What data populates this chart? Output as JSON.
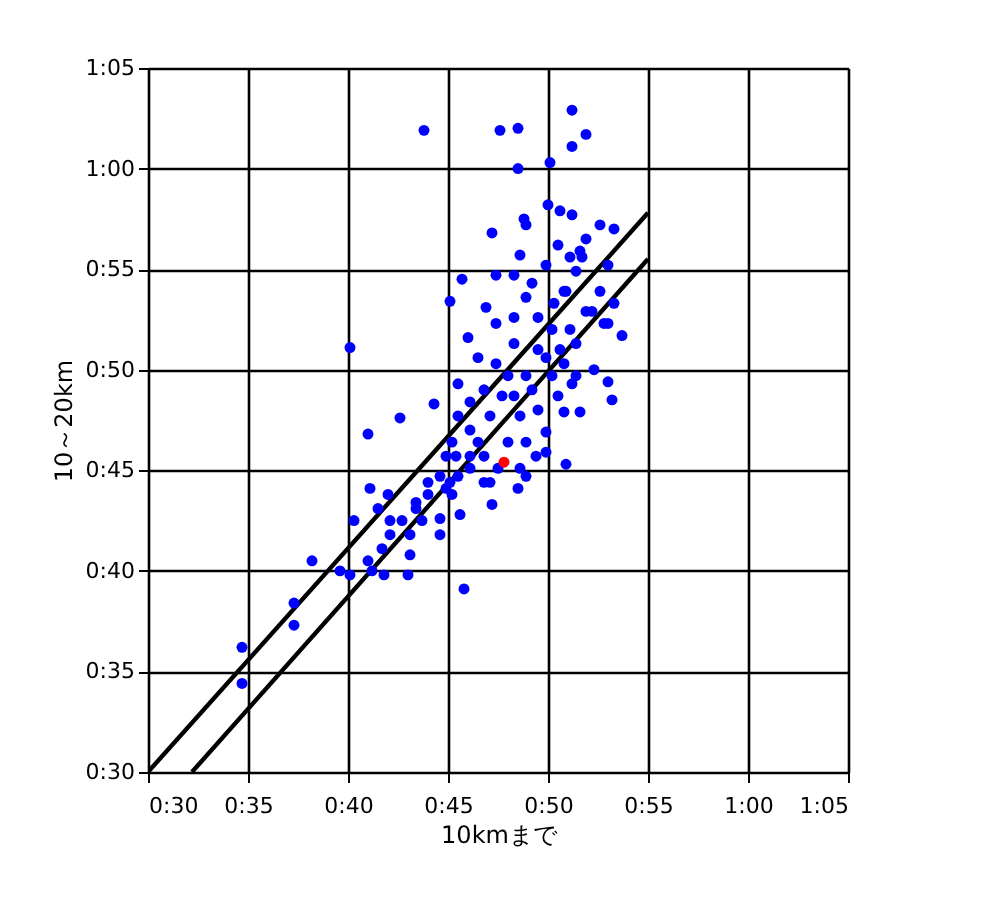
{
  "chart_data": {
    "type": "scatter",
    "xlabel": "10kmまで",
    "ylabel": "10～20km",
    "xlim": [
      30,
      65
    ],
    "ylim": [
      30,
      65
    ],
    "xticks": [
      {
        "value": 30,
        "label": "0:30"
      },
      {
        "value": 35,
        "label": "0:35"
      },
      {
        "value": 40,
        "label": "0:40"
      },
      {
        "value": 45,
        "label": "0:45"
      },
      {
        "value": 50,
        "label": "0:50"
      },
      {
        "value": 55,
        "label": "0:55"
      },
      {
        "value": 60,
        "label": "1:00"
      },
      {
        "value": 65,
        "label": "1:05"
      }
    ],
    "yticks": [
      {
        "value": 30,
        "label": "0:30"
      },
      {
        "value": 35,
        "label": "0:35"
      },
      {
        "value": 40,
        "label": "0:40"
      },
      {
        "value": 45,
        "label": "0:45"
      },
      {
        "value": 50,
        "label": "0:50"
      },
      {
        "value": 55,
        "label": "0:55"
      },
      {
        "value": 60,
        "label": "1:00"
      },
      {
        "value": 65,
        "label": "1:05"
      }
    ],
    "grid": true,
    "marker": "circle",
    "series": [
      {
        "type": "line",
        "color": "#000000",
        "marker": "none",
        "line_style": "solid",
        "x": [
          30,
          55
        ],
        "values": [
          30,
          57.8
        ]
      },
      {
        "type": "line",
        "color": "#000000",
        "marker": "none",
        "line_style": "solid",
        "x": [
          32.2,
          55
        ],
        "values": [
          30,
          55.5
        ]
      },
      {
        "color": "#0000ff",
        "x": [
          43.8,
          47.6,
          48.5,
          51.2,
          51.9,
          51.2,
          48.5,
          50.1,
          40.1,
          47.2,
          45.7,
          45.1,
          34.7,
          34.7,
          37.3,
          37.3,
          38.2,
          39.6,
          40.1,
          41.0,
          41.1,
          40.3,
          41.8,
          43.0,
          42.6,
          44.3,
          45.8,
          45.6,
          44.6,
          43.1,
          42.1,
          43.4,
          44.0,
          45.1,
          45.4,
          45.2,
          46.5,
          47.1,
          47.2,
          48.5,
          48.9,
          49.9,
          50.9,
          49.9,
          50.8,
          51.6,
          49.5,
          48.6,
          47.7,
          46.8,
          46.1,
          45.5,
          46.5,
          47.4,
          48.3,
          48.9,
          49.5,
          50.2,
          50.8,
          51.4,
          52.3,
          53.0,
          53.2,
          53.7,
          53.0,
          53.3,
          52.6,
          51.9,
          51.1,
          50.2,
          49.5,
          48.9,
          48.3,
          47.4,
          46.9,
          46.0,
          49.2,
          49.9,
          50.5,
          51.1,
          51.6,
          51.9,
          52.6,
          53.3,
          53.0,
          51.4,
          50.8,
          50.3,
          50.0,
          50.6,
          51.2,
          48.9,
          48.6,
          48.3,
          47.4,
          48.8,
          49.9,
          50.6,
          51.4,
          48.0,
          47.1,
          46.1,
          45.5,
          44.9,
          44.6,
          44.0,
          43.4,
          42.7,
          42.1,
          41.7,
          41.0,
          41.5,
          42.0,
          43.1,
          45.2,
          46.1,
          46.8,
          47.5,
          48.0,
          48.9,
          49.4,
          48.6,
          46.1,
          46.8,
          48.3,
          49.2,
          50.5,
          51.2,
          52.2,
          52.8,
          44.9,
          45.5,
          43.7,
          41.2,
          44.6,
          50.9,
          51.7
        ],
        "values": [
          61.9,
          61.9,
          62.0,
          62.9,
          61.7,
          61.1,
          60.0,
          60.3,
          51.1,
          56.8,
          54.5,
          53.4,
          36.2,
          34.4,
          38.4,
          37.3,
          40.5,
          40.0,
          39.8,
          46.8,
          44.1,
          42.5,
          39.8,
          39.8,
          47.6,
          48.3,
          39.1,
          42.8,
          41.8,
          40.8,
          42.5,
          43.4,
          44.4,
          44.4,
          45.7,
          46.4,
          46.4,
          44.4,
          43.3,
          44.1,
          44.7,
          45.9,
          45.3,
          46.9,
          47.9,
          47.9,
          48.0,
          47.7,
          48.7,
          49.0,
          48.4,
          49.3,
          50.6,
          50.3,
          51.3,
          49.7,
          51.0,
          49.7,
          50.3,
          49.7,
          50.0,
          49.4,
          48.5,
          51.7,
          52.3,
          53.3,
          53.9,
          52.9,
          52.0,
          52.0,
          52.6,
          53.6,
          52.6,
          52.3,
          53.1,
          51.6,
          54.3,
          55.2,
          56.2,
          55.6,
          55.9,
          56.5,
          57.2,
          57.0,
          55.2,
          54.9,
          53.9,
          53.3,
          58.2,
          57.9,
          57.7,
          57.2,
          55.7,
          54.7,
          54.7,
          57.5,
          50.6,
          51.0,
          51.3,
          49.7,
          47.7,
          47.0,
          47.7,
          45.7,
          44.7,
          43.8,
          43.1,
          42.5,
          41.8,
          41.1,
          40.5,
          43.1,
          43.8,
          41.8,
          43.8,
          45.1,
          45.7,
          45.1,
          46.4,
          46.4,
          45.7,
          45.1,
          45.7,
          44.4,
          48.7,
          49.0,
          48.7,
          49.3,
          52.9,
          52.3,
          44.1,
          44.7,
          42.5,
          40.0,
          42.6,
          53.9,
          55.6
        ]
      },
      {
        "color": "#ff0000",
        "x": [
          47.8
        ],
        "values": [
          45.4
        ]
      }
    ]
  }
}
